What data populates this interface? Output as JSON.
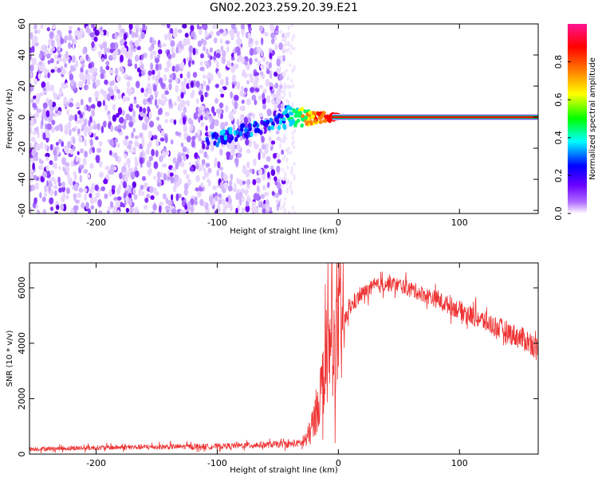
{
  "title": "GN02.2023.259.20.39.E21",
  "chart_data": [
    {
      "type": "heatmap",
      "xlabel": "Height of straight line (km)",
      "ylabel": "Frequency (Hz)",
      "xlim": [
        -255,
        165
      ],
      "ylim": [
        -62,
        60
      ],
      "x_ticks": [
        -200,
        -100,
        0,
        100
      ],
      "y_ticks": [
        60,
        40,
        20,
        0,
        -20,
        -40,
        -60
      ],
      "colorbar": {
        "label": "Normalized spectral amplitude",
        "range": [
          0,
          1
        ],
        "ticks": [
          "0.0",
          "0.2",
          "0.4",
          "0.6",
          "0.8"
        ],
        "colors": [
          "#ffffff",
          "#8a2be2",
          "#0000ff",
          "#00ffff",
          "#00ff00",
          "#ffff00",
          "#ff8000",
          "#ff0000",
          "#ff1493"
        ]
      },
      "features": {
        "noise_region_x": [
          -255,
          -45
        ],
        "transition_x": [
          -45,
          0
        ],
        "steady_line_x": [
          0,
          165
        ],
        "steady_line_frequency": 0
      }
    },
    {
      "type": "line",
      "xlabel": "Height of straight line (km)",
      "ylabel": "SNR (10 * v/v)",
      "xlim": [
        -255,
        165
      ],
      "ylim": [
        0,
        6900
      ],
      "x_ticks": [
        -200,
        -100,
        0,
        100
      ],
      "y_ticks": [
        0,
        2000,
        4000,
        6000
      ],
      "color": "#ee3333",
      "series": [
        {
          "x": [
            -255,
            -200,
            -150,
            -100,
            -60,
            -40,
            -30,
            -25,
            -20,
            -15,
            -10,
            -5,
            0,
            5,
            10,
            20,
            30,
            40,
            50,
            60,
            80,
            100,
            120,
            140,
            160,
            165
          ],
          "y": [
            180,
            230,
            260,
            280,
            340,
            360,
            400,
            600,
            1200,
            2200,
            3300,
            3900,
            4300,
            4800,
            5300,
            5800,
            6050,
            6150,
            6100,
            5950,
            5600,
            5200,
            4800,
            4400,
            4000,
            3700
          ]
        }
      ]
    }
  ]
}
